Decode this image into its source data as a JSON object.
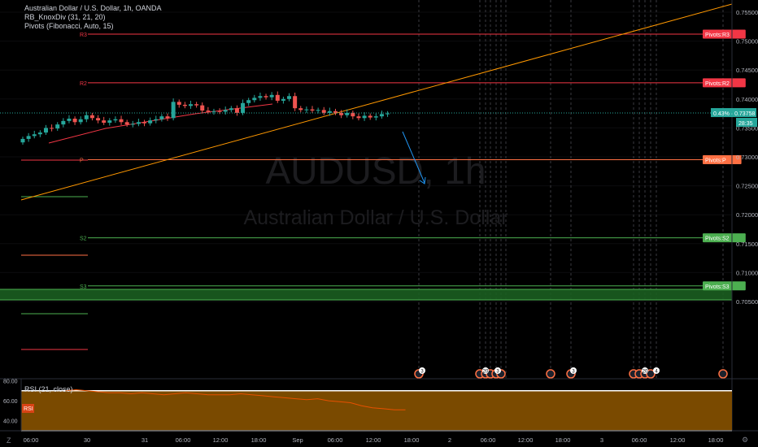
{
  "legend": {
    "line1": "Australian Dollar / U.S. Dollar, 1h, OANDA",
    "line2": "RB_KnoxDiv (31, 21, 20)",
    "line3": "Pivots (Fibonacci, Auto, 15)"
  },
  "watermark": {
    "symbol": "AUDUSD, 1h",
    "name": "Australian Dollar / U.S. Dollar"
  },
  "rsi_legend": "RSI (21, close)",
  "rsi_tag": "RSI",
  "corner_left": "Z",
  "corner_right": "⚙",
  "colors": {
    "bull": "#26a69a",
    "bear": "#ef5350",
    "r_line": "#f23645",
    "s_line": "#4caf50",
    "p_line": "#ff7043",
    "trend": "#ff9800",
    "rsi_fill": "#7a4a00"
  },
  "chart_data": [
    {
      "type": "candlestick",
      "title": "Australian Dollar / U.S. Dollar, 1h, OANDA",
      "x_tick_labels": [
        "06:00",
        "30",
        "31",
        "06:00",
        "12:00",
        "18:00",
        "Sep",
        "06:00",
        "12:00",
        "18:00",
        "2",
        "06:00",
        "12:00",
        "18:00",
        "3",
        "06:00",
        "12:00",
        "18:00"
      ],
      "y_tick_labels": [
        "0.75500",
        "0.75000",
        "0.74500",
        "0.74000",
        "0.73500",
        "0.73000",
        "0.72500",
        "0.72000",
        "0.71500",
        "0.71000",
        "0.70500"
      ],
      "ylim": [
        0.7015,
        0.7575
      ],
      "last_price": "0.73758",
      "last_change": "0.43%",
      "countdown": "28:35",
      "close": [
        0.7331,
        0.7336,
        0.7339,
        0.7342,
        0.735,
        0.7349,
        0.7356,
        0.7362,
        0.7366,
        0.736,
        0.7365,
        0.7372,
        0.7367,
        0.7363,
        0.7359,
        0.7363,
        0.7365,
        0.736,
        0.7356,
        0.7357,
        0.736,
        0.7358,
        0.7363,
        0.7365,
        0.737,
        0.7367,
        0.7395,
        0.739,
        0.7388,
        0.7391,
        0.7389,
        0.738,
        0.7378,
        0.7379,
        0.7378,
        0.7381,
        0.7384,
        0.7376,
        0.7393,
        0.7398,
        0.7402,
        0.7405,
        0.7403,
        0.7407,
        0.7397,
        0.74,
        0.7405,
        0.7384,
        0.7381,
        0.7382,
        0.738,
        0.7381,
        0.7376,
        0.7379,
        0.7376,
        0.7372,
        0.7376,
        0.737,
        0.7367,
        0.7371,
        0.7368,
        0.737,
        0.7374,
        0.7375
      ],
      "pivots": [
        {
          "label": "R3",
          "tag": "Pivots:R3",
          "value": 0.7512
        },
        {
          "label": "R2",
          "tag": "Pivots:R2",
          "value": 0.7428
        },
        {
          "label": "P",
          "tag": "Pivots:P",
          "value": 0.7295
        },
        {
          "label": "S2",
          "tag": "Pivots:S2",
          "value": 0.716
        },
        {
          "label": "S3",
          "tag": "Pivots:S3",
          "value": 0.7077
        }
      ],
      "event_labels": [
        "3",
        "20",
        "3",
        "3",
        "20",
        "4"
      ]
    },
    {
      "type": "line",
      "title": "RSI (21, close)",
      "y_tick_labels": [
        "80.00",
        "60.00",
        "40.00"
      ],
      "ylim": [
        30,
        82
      ],
      "values": [
        70,
        71,
        70,
        69,
        68,
        68,
        67,
        68,
        67,
        66,
        67,
        68,
        67,
        66,
        66,
        66,
        67,
        66,
        65,
        64,
        63,
        62,
        61,
        62,
        60,
        59,
        58,
        55,
        53,
        52,
        51,
        51
      ]
    }
  ]
}
